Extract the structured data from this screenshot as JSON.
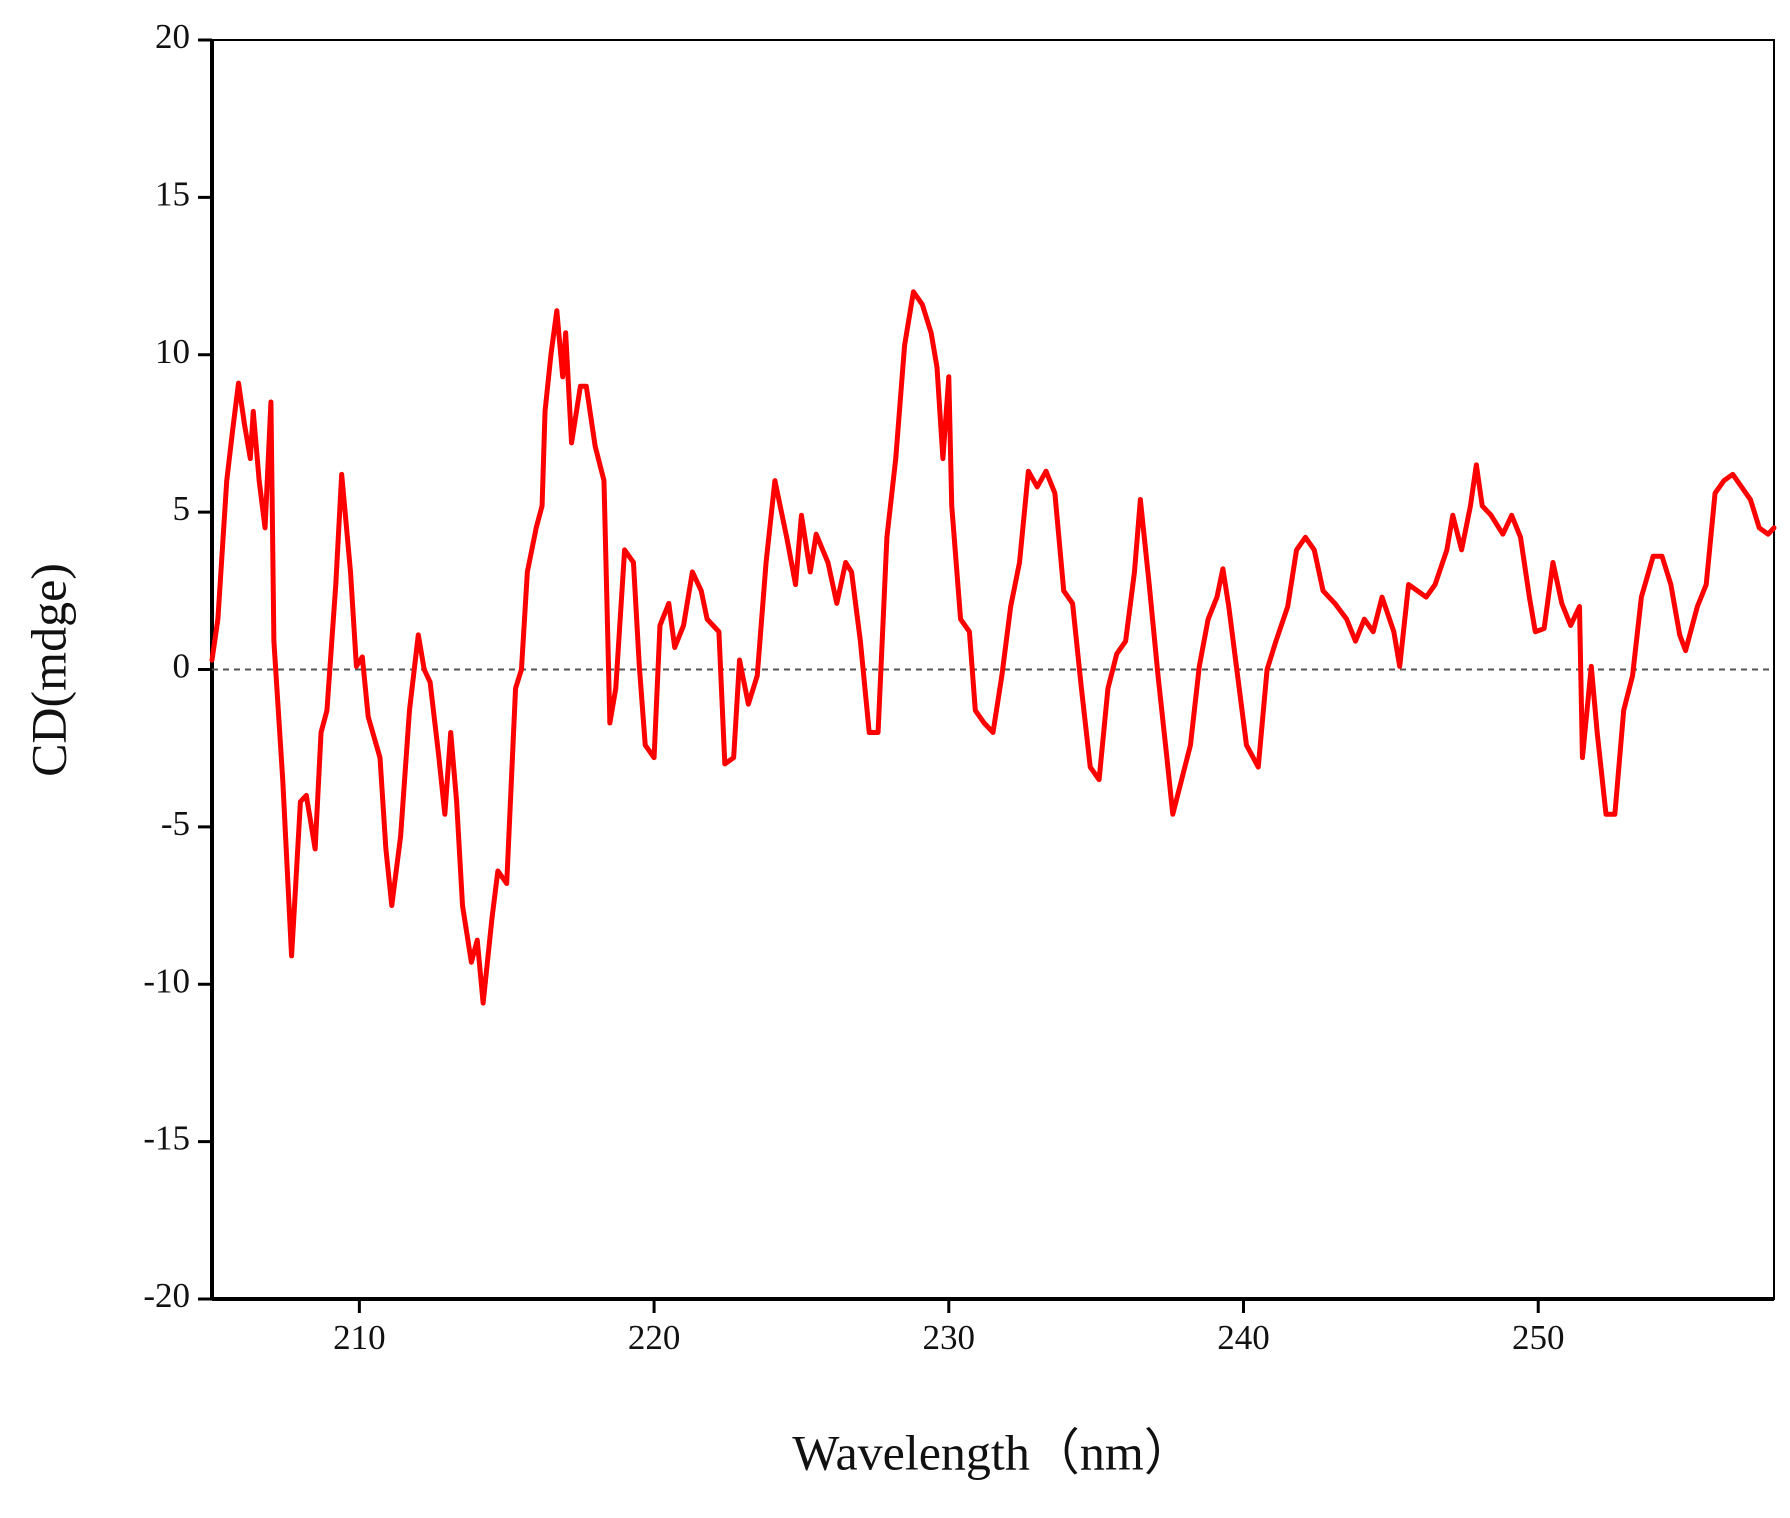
{
  "chart_data": {
    "type": "line",
    "x_label": "Wavelength（nm）",
    "y_label": "CD(mdge)",
    "xlim": [
      205,
      258
    ],
    "xticks": [
      210,
      220,
      230,
      240,
      250
    ],
    "ylim": [
      -20,
      20
    ],
    "yticks": [
      -20,
      -15,
      -10,
      -5,
      0,
      5,
      10,
      15,
      20
    ],
    "hline": 0,
    "series": [
      {
        "color": "#ff0000",
        "x": [
          205.0,
          205.2,
          205.5,
          205.7,
          205.9,
          206.1,
          206.3,
          206.4,
          206.6,
          206.8,
          207.0,
          207.1,
          207.4,
          207.7,
          207.8,
          208.0,
          208.2,
          208.5,
          208.7,
          208.9,
          209.2,
          209.4,
          209.7,
          209.9,
          210.1,
          210.3,
          210.7,
          210.9,
          211.1,
          211.4,
          211.7,
          212.0,
          212.2,
          212.4,
          212.7,
          212.9,
          213.1,
          213.3,
          213.5,
          213.8,
          214.0,
          214.2,
          214.5,
          214.7,
          215.0,
          215.3,
          215.5,
          215.7,
          216.0,
          216.2,
          216.3,
          216.5,
          216.7,
          216.9,
          217.0,
          217.2,
          217.5,
          217.7,
          218.0,
          218.3,
          218.5,
          218.7,
          219.0,
          219.3,
          219.5,
          219.7,
          220.0,
          220.2,
          220.5,
          220.7,
          221.0,
          221.3,
          221.6,
          221.8,
          222.2,
          222.4,
          222.7,
          222.9,
          223.2,
          223.5,
          223.8,
          224.1,
          224.3,
          224.5,
          224.8,
          225.0,
          225.3,
          225.5,
          225.9,
          226.2,
          226.5,
          226.7,
          227.0,
          227.3,
          227.6,
          227.9,
          228.2,
          228.5,
          228.8,
          229.1,
          229.4,
          229.6,
          229.8,
          230.0,
          230.1,
          230.4,
          230.7,
          230.9,
          231.2,
          231.5,
          231.8,
          232.1,
          232.4,
          232.7,
          233.0,
          233.3,
          233.6,
          233.9,
          234.2,
          234.5,
          234.8,
          235.1,
          235.4,
          235.7,
          236.0,
          236.3,
          236.5,
          236.8,
          237.1,
          237.4,
          237.6,
          237.9,
          238.2,
          238.5,
          238.8,
          239.1,
          239.3,
          239.5,
          239.8,
          240.1,
          240.5,
          240.8,
          241.1,
          241.5,
          241.8,
          242.1,
          242.4,
          242.7,
          243.1,
          243.5,
          243.8,
          244.1,
          244.4,
          244.7,
          245.1,
          245.3,
          245.6,
          245.9,
          246.2,
          246.5,
          246.9,
          247.1,
          247.4,
          247.7,
          247.9,
          248.1,
          248.4,
          248.8,
          249.1,
          249.4,
          249.7,
          249.9,
          250.2,
          250.5,
          250.8,
          251.1,
          251.4,
          251.5,
          251.8,
          252.0,
          252.3,
          252.6,
          252.9,
          253.2,
          253.5,
          253.9,
          254.2,
          254.5,
          254.8,
          255.0,
          255.4,
          255.7,
          256.0,
          256.3,
          256.6,
          256.9,
          257.2,
          257.5,
          257.8,
          258.0
        ],
        "values": [
          0.3,
          1.6,
          6,
          7.6,
          9.1,
          7.8,
          6.7,
          8.2,
          6,
          4.5,
          8.5,
          0.9,
          -3.5,
          -9.1,
          -7.5,
          -4.2,
          -4,
          -5.7,
          -2,
          -1.3,
          2.7,
          6.2,
          3.1,
          0.1,
          0.4,
          -1.5,
          -2.8,
          -5.7,
          -7.5,
          -5.3,
          -1.3,
          1.1,
          0,
          -0.4,
          -2.8,
          -4.6,
          -2,
          -4.2,
          -7.5,
          -9.3,
          -8.6,
          -10.6,
          -7.9,
          -6.4,
          -6.8,
          -0.6,
          0,
          3.1,
          4.5,
          5.2,
          8.2,
          10,
          11.4,
          9.3,
          10.7,
          7.2,
          9,
          9,
          7.1,
          6,
          -1.7,
          -0.6,
          3.8,
          3.4,
          0.1,
          -2.4,
          -2.8,
          1.4,
          2.1,
          0.7,
          1.4,
          3.1,
          2.5,
          1.6,
          1.2,
          -3,
          -2.8,
          0.3,
          -1.1,
          -0.2,
          3.4,
          6,
          5.1,
          4.2,
          2.7,
          4.9,
          3.1,
          4.3,
          3.4,
          2.1,
          3.4,
          3.1,
          0.9,
          -2,
          -2,
          4.2,
          6.7,
          10.3,
          12,
          11.6,
          10.7,
          9.6,
          6.7,
          9.3,
          5.2,
          1.6,
          1.2,
          -1.3,
          -1.7,
          -2,
          -0.2,
          2,
          3.4,
          6.3,
          5.8,
          6.3,
          5.6,
          2.5,
          2.1,
          -0.6,
          -3.1,
          -3.5,
          -0.6,
          0.5,
          0.9,
          3.1,
          5.4,
          2.7,
          -0.2,
          -2.8,
          -4.6,
          -3.5,
          -2.4,
          0.1,
          1.6,
          2.3,
          3.2,
          2,
          -0.2,
          -2.4,
          -3.1,
          0,
          0.9,
          2,
          3.8,
          4.2,
          3.8,
          2.5,
          2.1,
          1.6,
          0.9,
          1.6,
          1.2,
          2.3,
          1.2,
          0.1,
          2.7,
          2.5,
          2.3,
          2.7,
          3.8,
          4.9,
          3.8,
          5.2,
          6.5,
          5.2,
          4.9,
          4.3,
          4.9,
          4.2,
          2.3,
          1.2,
          1.3,
          3.4,
          2.1,
          1.4,
          2,
          -2.8,
          0.1,
          -2,
          -4.6,
          -4.6,
          -1.3,
          -0.2,
          2.3,
          3.6,
          3.6,
          2.7,
          1.1,
          0.6,
          2,
          2.7,
          5.6,
          6,
          6.2,
          5.8,
          5.4,
          4.5,
          4.3,
          4.5
        ]
      }
    ]
  }
}
